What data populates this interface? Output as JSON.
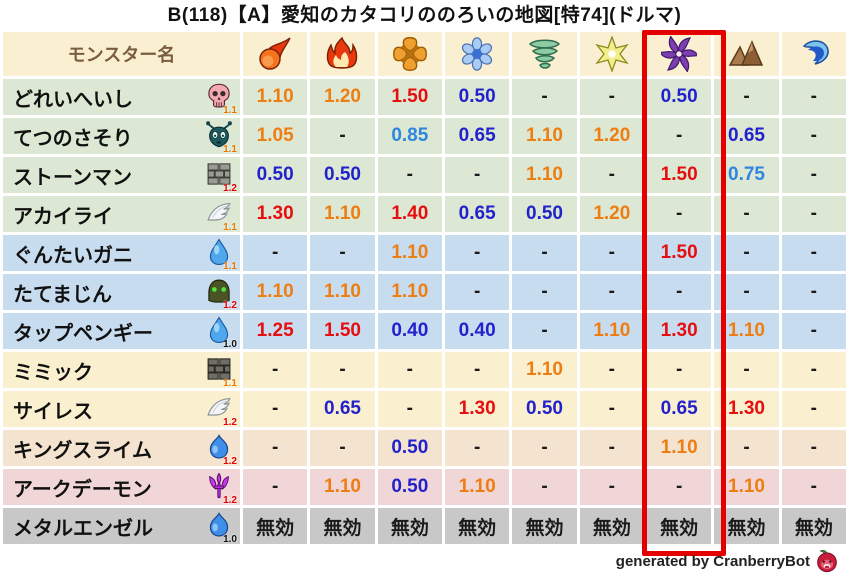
{
  "title": "B(118)【A】愛知のカタコリののろいの地図[特74](ドルマ)",
  "header": {
    "name_column_label": "モンスター名"
  },
  "footer": {
    "credit": "generated by CranberryBot",
    "icon": "cranberry-icon"
  },
  "highlight": {
    "column_index": 7,
    "color": "#E50000"
  },
  "palette": {
    "header_bg": "#FAEFD0",
    "header_text": "#7B5C3F",
    "row_green": "#DCE8D3",
    "row_blue": "#C8DCF0",
    "row_cream": "#FAF0CF",
    "row_peach": "#F4E4CF",
    "row_pink": "#F1D6D7",
    "row_gray": "#C8C8C8",
    "weak_strong": "#E60E0E",
    "weak_mild": "#EE7D12",
    "resist_strong": "#2222CC",
    "resist_mild": "#2E86E0",
    "neutral": "#1A1A1A",
    "rate_colors": {
      "1.0": "#111111",
      "1.1": "#E87800",
      "1.2": "#E60000"
    }
  },
  "chart_data": {
    "type": "table",
    "title": "B(118)【A】愛知のカタコリののろいの地図[特74](ドルマ)",
    "columns": [
      {
        "element": "fire",
        "icon": "fireball-icon",
        "highlighted": false
      },
      {
        "element": "blaze",
        "icon": "flame-icon",
        "highlighted": false
      },
      {
        "element": "explosion",
        "icon": "bang-icon",
        "highlighted": false
      },
      {
        "element": "ice",
        "icon": "snowflake-icon",
        "highlighted": false
      },
      {
        "element": "wind",
        "icon": "tornado-icon",
        "highlighted": false
      },
      {
        "element": "light",
        "icon": "star-icon",
        "highlighted": false
      },
      {
        "element": "dark",
        "icon": "pinwheel-icon",
        "highlighted": true
      },
      {
        "element": "earth",
        "icon": "mountain-icon",
        "highlighted": false
      },
      {
        "element": "water",
        "icon": "wave-icon",
        "highlighted": false
      }
    ],
    "rows": [
      {
        "name": "どれいへいし",
        "icon": "skull-icon",
        "rate": "1.1",
        "bg": "green",
        "values": [
          "1.10",
          "1.20",
          "1.50",
          "0.50",
          "-",
          "-",
          "0.50",
          "-",
          "-"
        ]
      },
      {
        "name": "てつのさそり",
        "icon": "bug-icon",
        "rate": "1.1",
        "bg": "green",
        "values": [
          "1.05",
          "-",
          "0.85",
          "0.65",
          "1.10",
          "1.20",
          "-",
          "0.65",
          "-"
        ]
      },
      {
        "name": "ストーンマン",
        "icon": "bricks-icon",
        "rate": "1.2",
        "bg": "green",
        "values": [
          "0.50",
          "0.50",
          "-",
          "-",
          "1.10",
          "-",
          "1.50",
          "0.75",
          "-"
        ]
      },
      {
        "name": "アカイライ",
        "icon": "wing-icon",
        "rate": "1.1",
        "bg": "green",
        "values": [
          "1.30",
          "1.10",
          "1.40",
          "0.65",
          "0.50",
          "1.20",
          "-",
          "-",
          "-"
        ]
      },
      {
        "name": "ぐんたいガニ",
        "icon": "waterdrop-icon",
        "rate": "1.1",
        "bg": "blue",
        "values": [
          "-",
          "-",
          "1.10",
          "-",
          "-",
          "-",
          "1.50",
          "-",
          "-"
        ]
      },
      {
        "name": "たてまじん",
        "icon": "helmet-icon",
        "rate": "1.2",
        "bg": "blue",
        "values": [
          "1.10",
          "1.10",
          "1.10",
          "-",
          "-",
          "-",
          "-",
          "-",
          "-"
        ]
      },
      {
        "name": "タップペンギー",
        "icon": "waterdrop-icon",
        "rate": "1.0",
        "bg": "blue",
        "values": [
          "1.25",
          "1.50",
          "0.40",
          "0.40",
          "-",
          "1.10",
          "1.30",
          "1.10",
          "-"
        ]
      },
      {
        "name": "ミミック",
        "icon": "bricks-dark-icon",
        "rate": "1.1",
        "bg": "cream",
        "values": [
          "-",
          "-",
          "-",
          "-",
          "1.10",
          "-",
          "-",
          "-",
          "-"
        ]
      },
      {
        "name": "サイレス",
        "icon": "wing-icon",
        "rate": "1.2",
        "bg": "cream",
        "values": [
          "-",
          "0.65",
          "-",
          "1.30",
          "0.50",
          "-",
          "0.65",
          "1.30",
          "-"
        ]
      },
      {
        "name": "キングスライム",
        "icon": "slime-icon",
        "rate": "1.2",
        "bg": "peach",
        "values": [
          "-",
          "-",
          "0.50",
          "-",
          "-",
          "-",
          "1.10",
          "-",
          "-"
        ]
      },
      {
        "name": "アークデーモン",
        "icon": "trident-icon",
        "rate": "1.2",
        "bg": "pink",
        "values": [
          "-",
          "1.10",
          "0.50",
          "1.10",
          "-",
          "-",
          "-",
          "1.10",
          "-"
        ]
      },
      {
        "name": "メタルエンゼル",
        "icon": "slime-icon",
        "rate": "1.0",
        "bg": "gray",
        "values": [
          "無効",
          "無効",
          "無効",
          "無効",
          "無効",
          "無効",
          "無効",
          "無効",
          "無効"
        ]
      }
    ]
  }
}
